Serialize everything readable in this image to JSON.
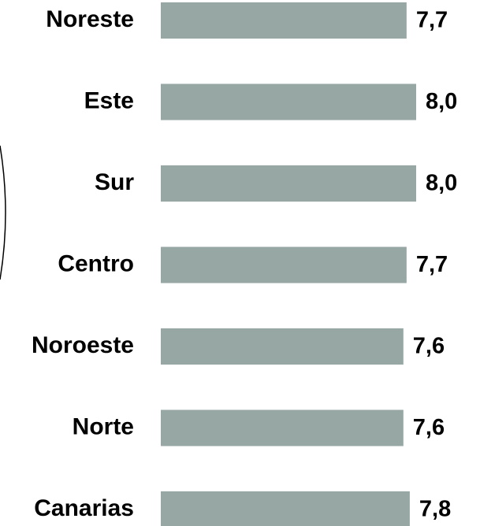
{
  "chart_data": {
    "type": "bar",
    "orientation": "horizontal",
    "categories": [
      "Noreste",
      "Este",
      "Sur",
      "Centro",
      "Noroeste",
      "Norte",
      "Canarias"
    ],
    "values": [
      7.7,
      8.0,
      8.0,
      7.7,
      7.6,
      7.6,
      7.8
    ],
    "value_labels": [
      "7,7",
      "8,0",
      "8,0",
      "7,7",
      "7,6",
      "7,6",
      "7,8"
    ],
    "color": "#96a7a4"
  }
}
